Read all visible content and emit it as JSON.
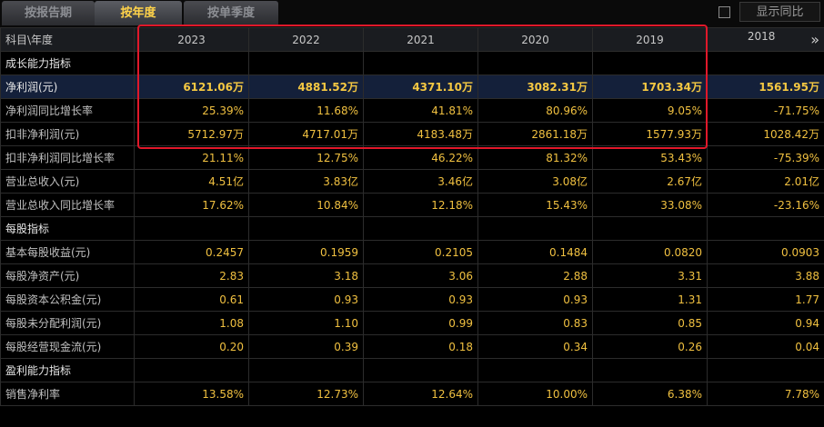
{
  "tabs": [
    {
      "label": "按报告期",
      "active": false
    },
    {
      "label": "按年度",
      "active": true
    },
    {
      "label": "按单季度",
      "active": false
    }
  ],
  "yoy_toggle": {
    "label": "显示同比",
    "checked": false
  },
  "header": {
    "label": "科目\\年度",
    "years": [
      "2023",
      "2022",
      "2021",
      "2020",
      "2019",
      "2018"
    ],
    "more_icon": "double-chevron-right-icon"
  },
  "rows": [
    {
      "label": "成长能力指标",
      "type": "section",
      "values": [
        "",
        "",
        "",
        "",
        "",
        ""
      ]
    },
    {
      "label": "净利润(元)",
      "type": "bold",
      "values": [
        "6121.06万",
        "4881.52万",
        "4371.10万",
        "3082.31万",
        "1703.34万",
        "1561.95万"
      ]
    },
    {
      "label": "净利润同比增长率",
      "type": "data",
      "values": [
        "25.39%",
        "11.68%",
        "41.81%",
        "80.96%",
        "9.05%",
        "-71.75%"
      ]
    },
    {
      "label": "扣非净利润(元)",
      "type": "data",
      "values": [
        "5712.97万",
        "4717.01万",
        "4183.48万",
        "2861.18万",
        "1577.93万",
        "1028.42万"
      ]
    },
    {
      "label": "扣非净利润同比增长率",
      "type": "data",
      "values": [
        "21.11%",
        "12.75%",
        "46.22%",
        "81.32%",
        "53.43%",
        "-75.39%"
      ]
    },
    {
      "label": "营业总收入(元)",
      "type": "data",
      "values": [
        "4.51亿",
        "3.83亿",
        "3.46亿",
        "3.08亿",
        "2.67亿",
        "2.01亿"
      ]
    },
    {
      "label": "营业总收入同比增长率",
      "type": "data",
      "values": [
        "17.62%",
        "10.84%",
        "12.18%",
        "15.43%",
        "33.08%",
        "-23.16%"
      ]
    },
    {
      "label": "每股指标",
      "type": "section",
      "values": [
        "",
        "",
        "",
        "",
        "",
        ""
      ]
    },
    {
      "label": "基本每股收益(元)",
      "type": "data",
      "values": [
        "0.2457",
        "0.1959",
        "0.2105",
        "0.1484",
        "0.0820",
        "0.0903"
      ]
    },
    {
      "label": "每股净资产(元)",
      "type": "data",
      "values": [
        "2.83",
        "3.18",
        "3.06",
        "2.88",
        "3.31",
        "3.88"
      ]
    },
    {
      "label": "每股资本公积金(元)",
      "type": "data",
      "values": [
        "0.61",
        "0.93",
        "0.93",
        "0.93",
        "1.31",
        "1.77"
      ]
    },
    {
      "label": "每股未分配利润(元)",
      "type": "data",
      "values": [
        "1.08",
        "1.10",
        "0.99",
        "0.83",
        "0.85",
        "0.94"
      ]
    },
    {
      "label": "每股经营现金流(元)",
      "type": "data",
      "values": [
        "0.20",
        "0.39",
        "0.18",
        "0.34",
        "0.26",
        "0.04"
      ]
    },
    {
      "label": "盈利能力指标",
      "type": "section",
      "values": [
        "",
        "",
        "",
        "",
        "",
        ""
      ]
    },
    {
      "label": "销售净利率",
      "type": "data",
      "values": [
        "13.58%",
        "12.73%",
        "12.64%",
        "10.00%",
        "6.38%",
        "7.78%"
      ]
    }
  ],
  "colors": {
    "value_text": "#f0c040",
    "highlight_border": "#e0182a",
    "active_tab": "#ffd34a"
  }
}
